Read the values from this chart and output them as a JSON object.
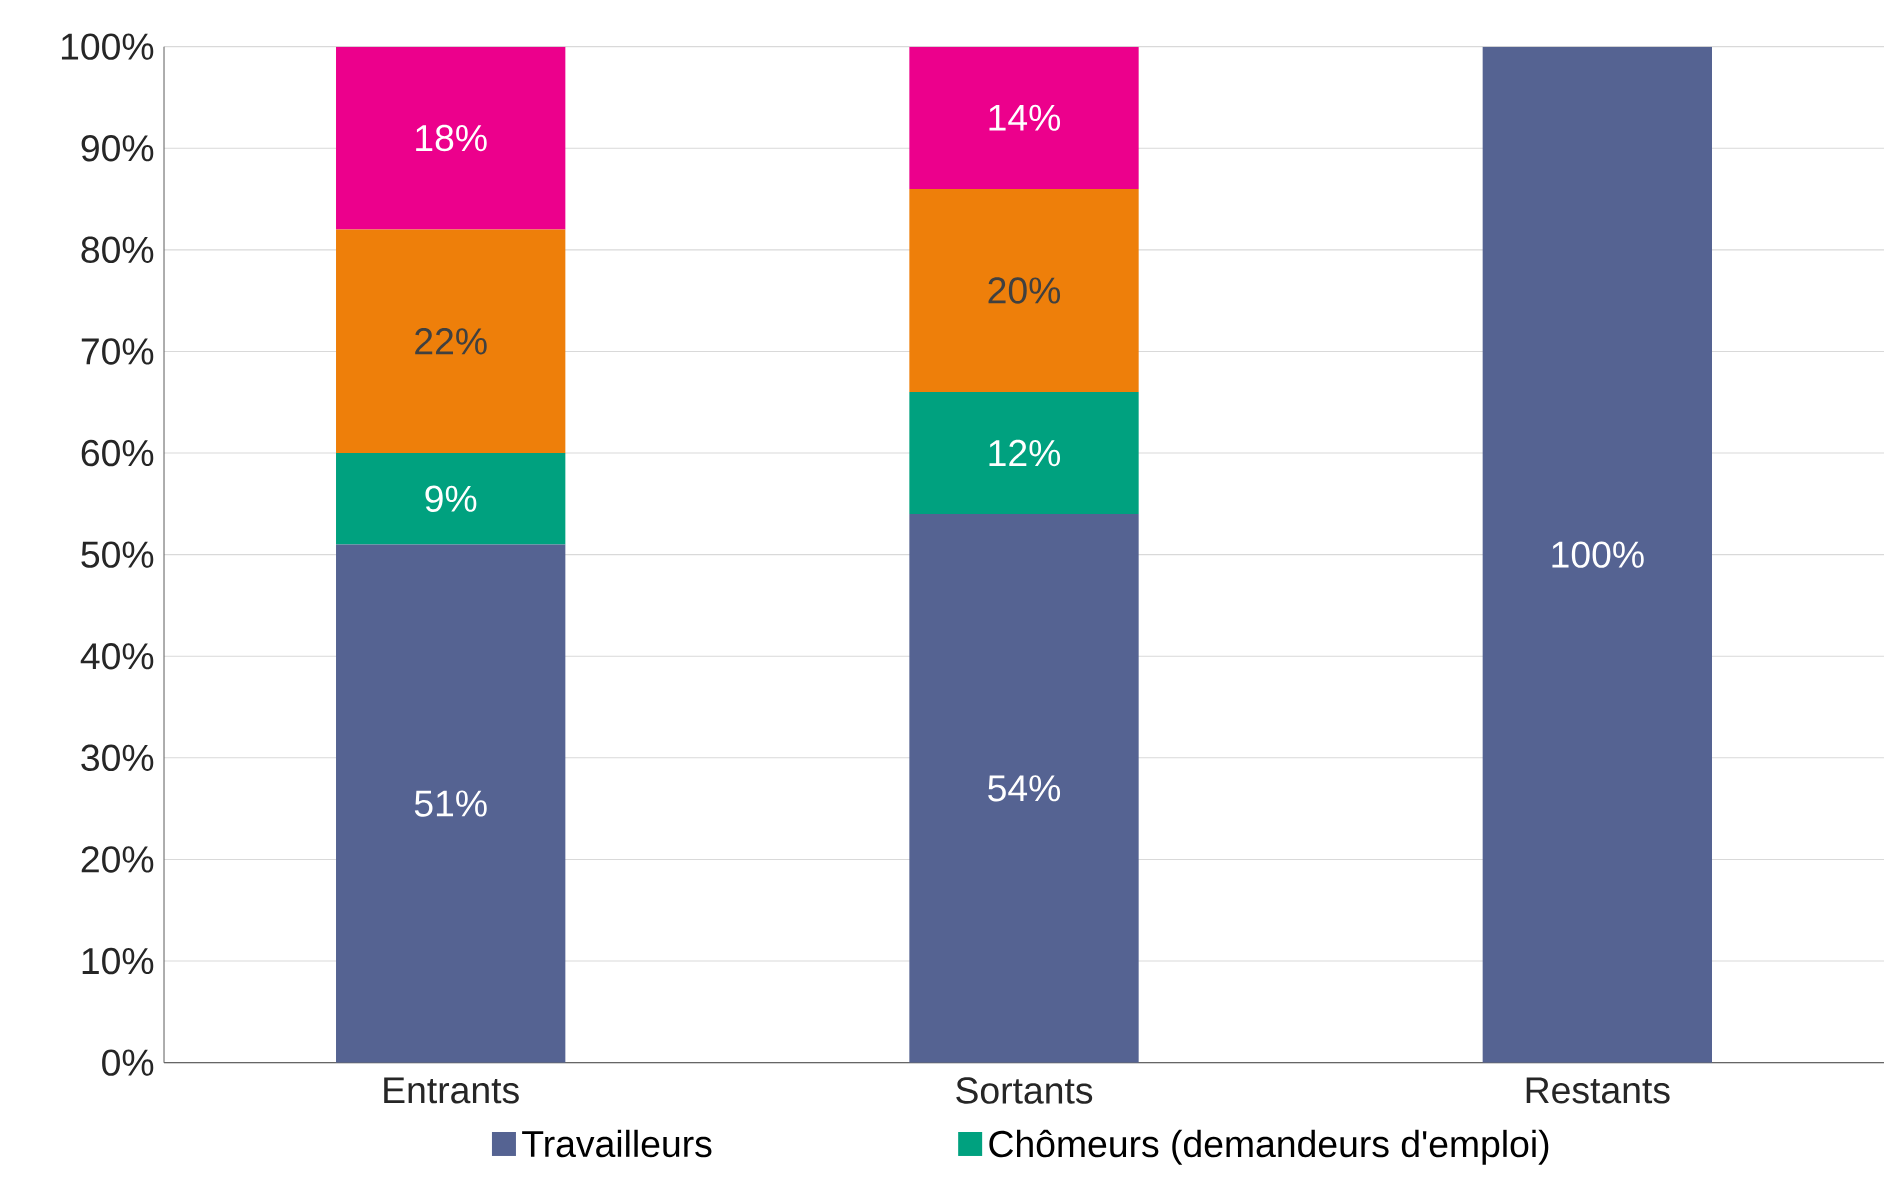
{
  "chart_data": {
    "type": "bar",
    "stacked": true,
    "categories": [
      "Entrants",
      "Sortants",
      "Restants"
    ],
    "series": [
      {
        "name": "Travailleurs",
        "color": "#556392",
        "values": [
          51,
          54,
          100
        ],
        "value_labels": [
          "51%",
          "54%",
          "100%"
        ]
      },
      {
        "name": "Chômeurs (demandeurs d'emploi)",
        "color": "#00a17f",
        "values": [
          9,
          12,
          null
        ],
        "value_labels": [
          "9%",
          "12%",
          null
        ]
      },
      {
        "color": "#ee7f0a",
        "values": [
          22,
          20,
          null
        ],
        "value_labels": [
          "22%",
          "20%",
          null
        ]
      },
      {
        "color": "#ec008c",
        "values": [
          18,
          14,
          null
        ],
        "value_labels": [
          "18%",
          "14%",
          null
        ]
      }
    ],
    "ylim": [
      0,
      100
    ],
    "yticks": [
      {
        "value": 0,
        "label": "0%"
      },
      {
        "value": 10,
        "label": "10%"
      },
      {
        "value": 20,
        "label": "20%"
      },
      {
        "value": 30,
        "label": "30%"
      },
      {
        "value": 40,
        "label": "40%"
      },
      {
        "value": 50,
        "label": "50%"
      },
      {
        "value": 60,
        "label": "60%"
      },
      {
        "value": 70,
        "label": "70%"
      },
      {
        "value": 80,
        "label": "80%"
      },
      {
        "value": 90,
        "label": "90%"
      },
      {
        "value": 100,
        "label": "100%"
      }
    ],
    "grid": "y",
    "legend": "bottom"
  }
}
